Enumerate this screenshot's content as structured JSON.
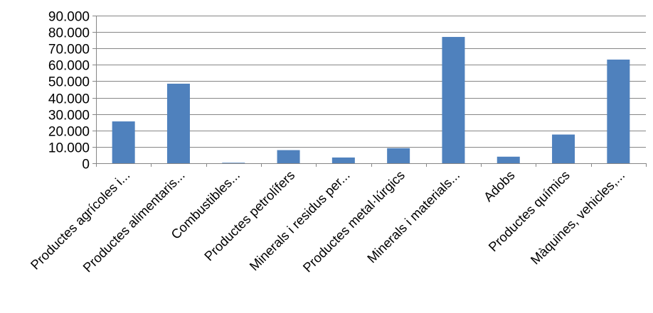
{
  "chart_data": {
    "type": "bar",
    "categories": [
      "Productes agrícoles i...",
      "Productes alimentaris...",
      "Combustibles...",
      "Productes petrolífers",
      "Minerals i residus per...",
      "Productes metal·lúrgics",
      "Minerals i materials...",
      "Adobs",
      "Productes químics",
      "Màquines, vehicles,..."
    ],
    "values": [
      25500,
      48500,
      300,
      8000,
      3500,
      9200,
      77000,
      4000,
      17500,
      63200
    ],
    "ylim": [
      0,
      90000
    ],
    "yticks": [
      {
        "value": 0,
        "label": "0"
      },
      {
        "value": 10000,
        "label": "10.000"
      },
      {
        "value": 20000,
        "label": "20.000"
      },
      {
        "value": 30000,
        "label": "30.000"
      },
      {
        "value": 40000,
        "label": "40.000"
      },
      {
        "value": 50000,
        "label": "50.000"
      },
      {
        "value": 60000,
        "label": "60.000"
      },
      {
        "value": 70000,
        "label": "70.000"
      },
      {
        "value": 80000,
        "label": "80.000"
      },
      {
        "value": 90000,
        "label": "90.000"
      }
    ],
    "grid": true,
    "bar_color": "#4F81BD",
    "grid_color": "#868686"
  }
}
